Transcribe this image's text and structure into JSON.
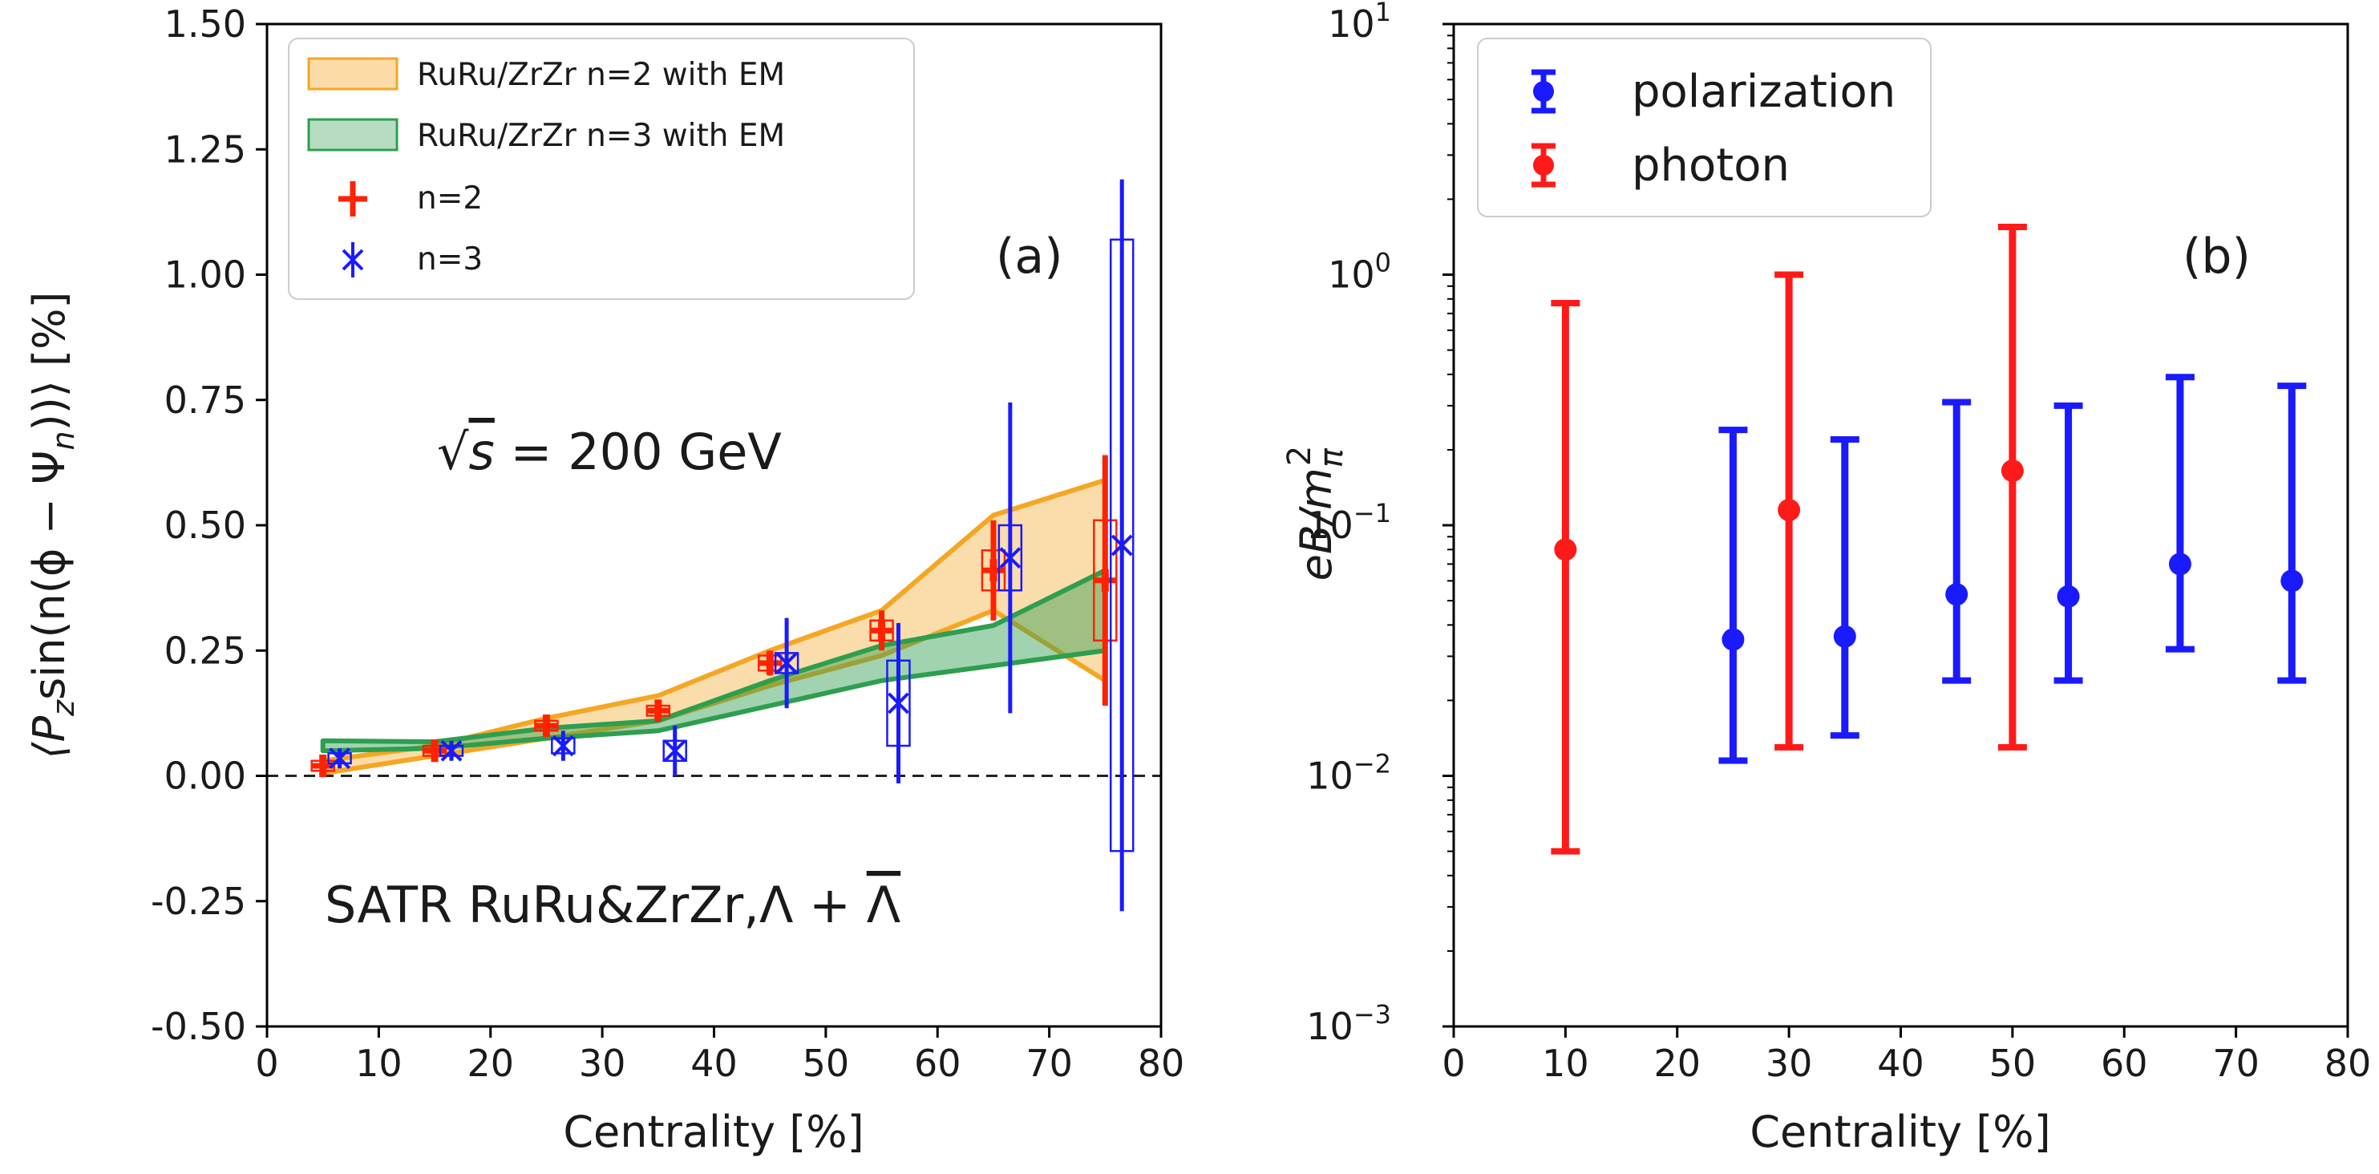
{
  "chart_data": [
    {
      "type": "line",
      "panel_label": "(a)",
      "xlabel": "Centrality [%]",
      "ylabel_parts": [
        "⟨P",
        "z",
        "sin(n(ϕ − Ψ",
        "n",
        "))⟩ [%]"
      ],
      "xlim": [
        0,
        80
      ],
      "ylim": [
        -0.5,
        1.5
      ],
      "x_ticks": [
        0,
        10,
        20,
        30,
        40,
        50,
        60,
        70,
        80
      ],
      "y_ticks": [
        -0.5,
        -0.25,
        0,
        0.25,
        0.5,
        0.75,
        1.0,
        1.25,
        1.5
      ],
      "y_tick_labels": [
        "-0.50",
        "-0.25",
        "0.00",
        "0.25",
        "0.50",
        "0.75",
        "1.00",
        "1.25",
        "1.50"
      ],
      "zero_line": true,
      "annotations": {
        "energy_parts": [
          "√",
          "s",
          " = 200 GeV"
        ],
        "experiment_parts": [
          "SATR RuRu&ZrZr,",
          "Λ + ",
          "Λ"
        ]
      },
      "legend": {
        "placement": "top-left",
        "entries": [
          {
            "label": "RuRu/ZrZr n=2 with EM",
            "kind": "band",
            "color": "#f5a623"
          },
          {
            "label": "RuRu/ZrZr n=3 with EM",
            "kind": "band",
            "color": "#2e9e4f"
          },
          {
            "label": "n=2",
            "kind": "marker",
            "color": "#ff2200"
          },
          {
            "label": "n=3",
            "kind": "marker",
            "color": "#1a1aff"
          }
        ]
      },
      "bands": [
        {
          "name": "RuRu/ZrZr n=2 with EM",
          "color": "#f5a623",
          "x": [
            5,
            15,
            25,
            35,
            45,
            55,
            65,
            75
          ],
          "lower": [
            0.005,
            0.04,
            0.075,
            0.11,
            0.18,
            0.24,
            0.33,
            0.19
          ],
          "upper": [
            0.03,
            0.06,
            0.115,
            0.16,
            0.25,
            0.33,
            0.52,
            0.59
          ]
        },
        {
          "name": "RuRu/ZrZr n=3 with EM",
          "color": "#2e9e4f",
          "x": [
            5,
            15,
            25,
            35,
            45,
            55,
            65,
            75
          ],
          "lower": [
            0.05,
            0.055,
            0.075,
            0.09,
            0.14,
            0.19,
            0.22,
            0.25
          ],
          "upper": [
            0.07,
            0.068,
            0.095,
            0.11,
            0.19,
            0.26,
            0.3,
            0.41
          ]
        }
      ],
      "series": [
        {
          "name": "n=2",
          "color": "#ff2200",
          "marker": "plus",
          "x": [
            5,
            15,
            25,
            35,
            45,
            55,
            65,
            75
          ],
          "y": [
            0.02,
            0.05,
            0.1,
            0.13,
            0.225,
            0.29,
            0.41,
            0.39
          ],
          "stat_err": [
            0.015,
            0.012,
            0.015,
            0.015,
            0.025,
            0.04,
            0.1,
            0.25
          ],
          "sys_err": [
            0.01,
            0.01,
            0.01,
            0.01,
            0.015,
            0.02,
            0.04,
            0.12
          ]
        },
        {
          "name": "n=3",
          "color": "#1a1aff",
          "marker": "x",
          "x": [
            6.5,
            16.5,
            26.5,
            36.5,
            46.5,
            56.5,
            66.5,
            76.5
          ],
          "y": [
            0.035,
            0.05,
            0.06,
            0.05,
            0.225,
            0.145,
            0.435,
            0.46
          ],
          "stat_err": [
            0.02,
            0.02,
            0.03,
            0.05,
            0.09,
            0.16,
            0.31,
            0.73
          ],
          "sys_err": [
            0.01,
            0.01,
            0.015,
            0.02,
            0.02,
            0.085,
            0.065,
            0.61
          ]
        }
      ]
    },
    {
      "type": "scatter",
      "panel_label": "(b)",
      "xlabel": "Centrality [%]",
      "ylabel_parts": [
        "eB/m",
        "π",
        "2"
      ],
      "log_y": true,
      "xlim": [
        0,
        80
      ],
      "ylim": [
        0.001,
        10
      ],
      "x_ticks": [
        0,
        10,
        20,
        30,
        40,
        50,
        60,
        70,
        80
      ],
      "y_ticks": [
        0.001,
        0.01,
        0.1,
        1,
        10
      ],
      "y_tick_labels": [
        [
          "10",
          "−3"
        ],
        [
          "10",
          "−2"
        ],
        [
          "10",
          "−1"
        ],
        [
          "10",
          "0"
        ],
        [
          "10",
          "1"
        ]
      ],
      "legend": {
        "placement": "top-left",
        "entries": [
          {
            "label": "polarization",
            "color": "#1a1aff"
          },
          {
            "label": "photon",
            "color": "#ff1a1a"
          }
        ]
      },
      "series": [
        {
          "name": "polarization",
          "color": "#1a1aff",
          "x": [
            25,
            35,
            45,
            55,
            65,
            75
          ],
          "y": [
            0.035,
            0.036,
            0.053,
            0.052,
            0.07,
            0.06
          ],
          "lower": [
            0.0115,
            0.0145,
            0.024,
            0.024,
            0.032,
            0.024
          ],
          "upper": [
            0.24,
            0.22,
            0.31,
            0.3,
            0.39,
            0.36
          ]
        },
        {
          "name": "photon",
          "color": "#ff1a1a",
          "x": [
            10,
            30,
            50
          ],
          "y": [
            0.08,
            0.115,
            0.165
          ],
          "lower": [
            0.005,
            0.013,
            0.013
          ],
          "upper": [
            0.77,
            1.0,
            1.55
          ]
        }
      ]
    }
  ]
}
